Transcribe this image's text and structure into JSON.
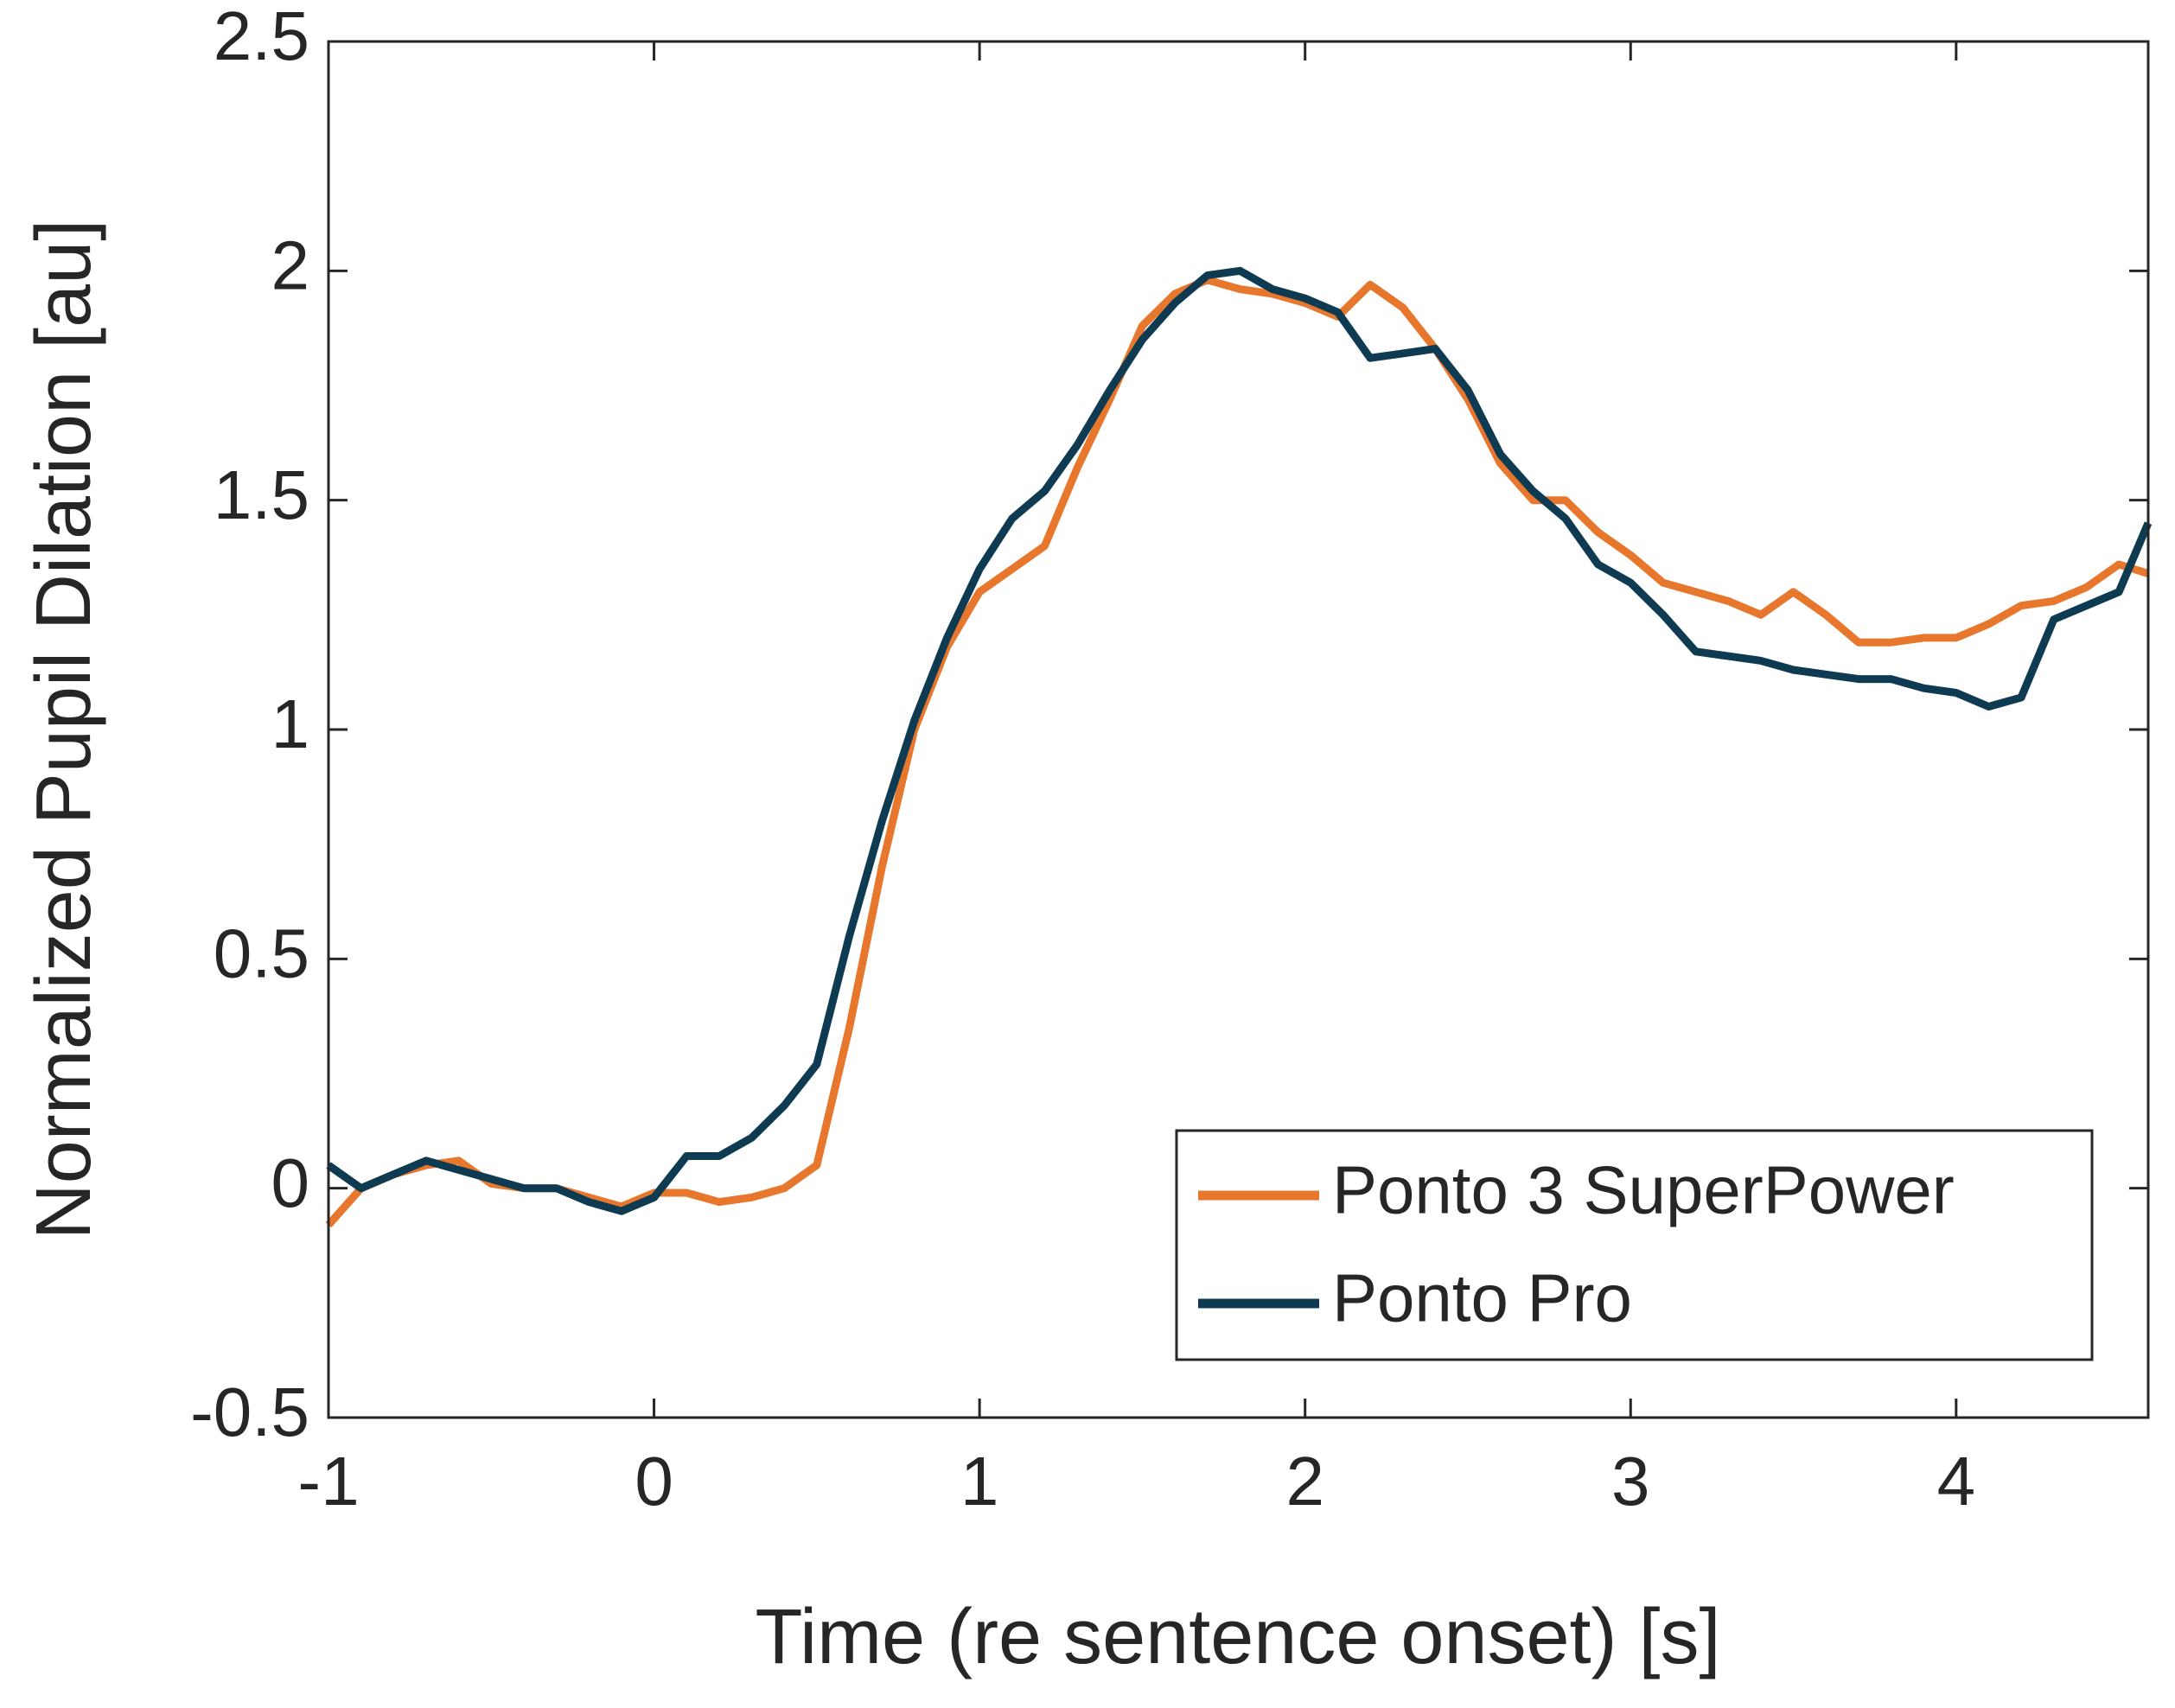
{
  "chart_data": {
    "type": "line",
    "xlabel": "Time (re sentence onset) [s]",
    "ylabel": "Normalized Pupil Dilation [au]",
    "x": [
      -1,
      -0.9,
      -0.8,
      -0.7,
      -0.6,
      -0.5,
      -0.4,
      -0.3,
      -0.2,
      -0.1,
      0,
      0.1,
      0.2,
      0.3,
      0.4,
      0.5,
      0.6,
      0.7,
      0.8,
      0.9,
      1,
      1.1,
      1.2,
      1.3,
      1.4,
      1.5,
      1.6,
      1.7,
      1.8,
      1.9,
      2,
      2.1,
      2.2,
      2.3,
      2.4,
      2.5,
      2.6,
      2.7,
      2.8,
      2.9,
      3,
      3.1,
      3.2,
      3.3,
      3.4,
      3.5,
      3.6,
      3.7,
      3.8,
      3.9,
      4,
      4.1,
      4.2,
      4.3,
      4.4,
      4.5,
      4.59
    ],
    "series": [
      {
        "name": "Ponto 3 SuperPower",
        "color": "#e8772e",
        "values": [
          -0.08,
          0.0,
          0.03,
          0.05,
          0.06,
          0.01,
          0.0,
          0.0,
          -0.02,
          -0.04,
          -0.01,
          -0.01,
          -0.03,
          -0.02,
          0.0,
          0.05,
          0.35,
          0.7,
          1.0,
          1.18,
          1.3,
          1.35,
          1.4,
          1.57,
          1.72,
          1.88,
          1.95,
          1.98,
          1.96,
          1.95,
          1.93,
          1.9,
          1.97,
          1.92,
          1.83,
          1.72,
          1.58,
          1.5,
          1.5,
          1.43,
          1.38,
          1.32,
          1.3,
          1.28,
          1.25,
          1.3,
          1.25,
          1.19,
          1.19,
          1.2,
          1.2,
          1.23,
          1.27,
          1.28,
          1.31,
          1.36,
          1.34
        ]
      },
      {
        "name": "Ponto Pro",
        "color": "#0e3a52",
        "values": [
          0.05,
          0.0,
          0.03,
          0.06,
          0.04,
          0.02,
          0.0,
          0.0,
          -0.03,
          -0.05,
          -0.02,
          0.07,
          0.07,
          0.11,
          0.18,
          0.27,
          0.55,
          0.8,
          1.02,
          1.2,
          1.35,
          1.46,
          1.52,
          1.62,
          1.74,
          1.85,
          1.93,
          1.99,
          2.0,
          1.96,
          1.94,
          1.91,
          1.81,
          1.82,
          1.83,
          1.74,
          1.6,
          1.52,
          1.46,
          1.36,
          1.32,
          1.25,
          1.17,
          1.16,
          1.15,
          1.13,
          1.12,
          1.11,
          1.11,
          1.09,
          1.08,
          1.05,
          1.07,
          1.24,
          1.27,
          1.3,
          1.45
        ]
      }
    ],
    "xlim": [
      -1,
      4.59
    ],
    "ylim": [
      -0.5,
      2.5
    ],
    "xticks": [
      -1,
      0,
      1,
      2,
      3,
      4
    ],
    "yticks": [
      -0.5,
      0,
      0.5,
      1,
      1.5,
      2,
      2.5
    ],
    "legend": "lower right"
  }
}
